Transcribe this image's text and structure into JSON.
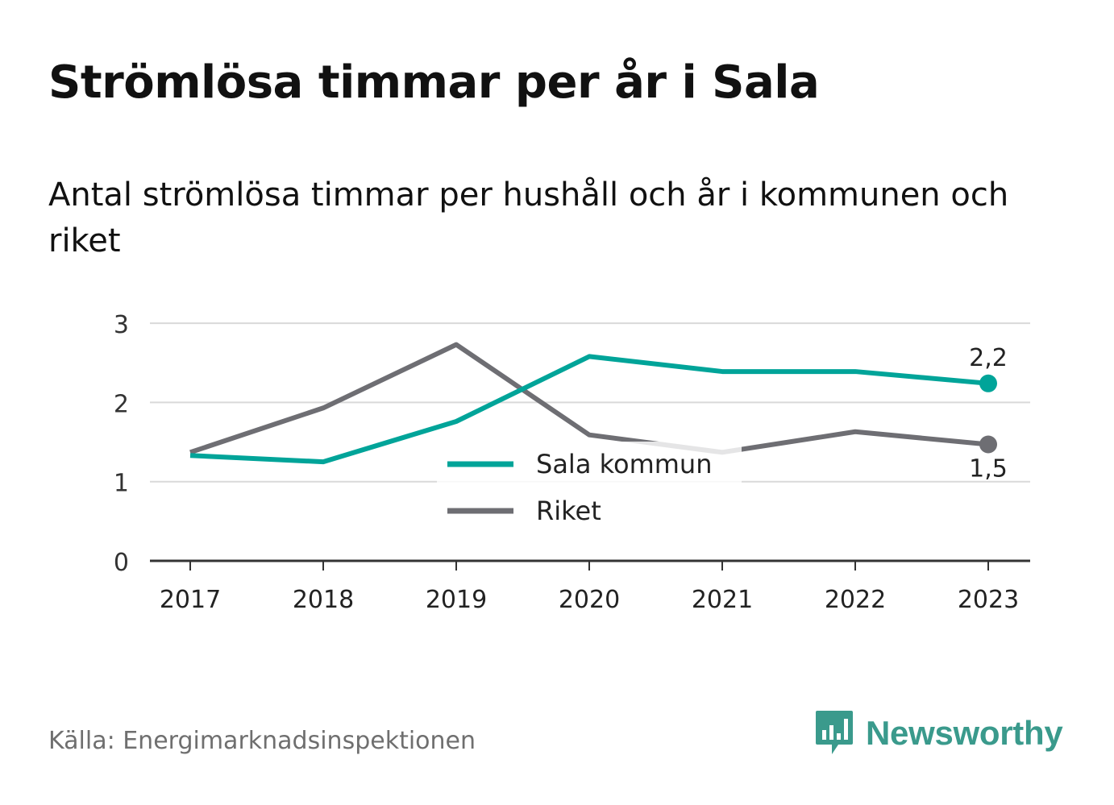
{
  "header": {
    "title": "Strömlösa timmar per år i Sala",
    "subtitle": "Antal strömlösa timmar per hushåll och år i kommunen och riket"
  },
  "footer": {
    "source": "Källa: Energimarknadsinspektionen",
    "brand": "Newsworthy",
    "brand_icon": "newsworthy-logo-icon"
  },
  "colors": {
    "sala": "#00a499",
    "riket": "#6e6e73",
    "grid": "#d9d9d9",
    "axis": "#333333",
    "brand": "#3a9a8c"
  },
  "chart_data": {
    "type": "line",
    "title": "Strömlösa timmar per år i Sala",
    "subtitle": "Antal strömlösa timmar per hushåll och år i kommunen och riket",
    "categories": [
      "2017",
      "2018",
      "2019",
      "2020",
      "2021",
      "2022",
      "2023"
    ],
    "series": [
      {
        "name": "Sala kommun",
        "values": [
          1.33,
          1.25,
          1.76,
          2.58,
          2.39,
          2.39,
          2.24
        ],
        "end_label": "2,2"
      },
      {
        "name": "Riket",
        "values": [
          1.37,
          1.93,
          2.73,
          1.59,
          1.37,
          1.63,
          1.47
        ],
        "end_label": "1,5"
      }
    ],
    "yticks": [
      "0",
      "1",
      "2",
      "3"
    ],
    "ylim": [
      0,
      3
    ],
    "xlabel": "",
    "ylabel": "",
    "grid": true,
    "legend": "bottom-center"
  }
}
